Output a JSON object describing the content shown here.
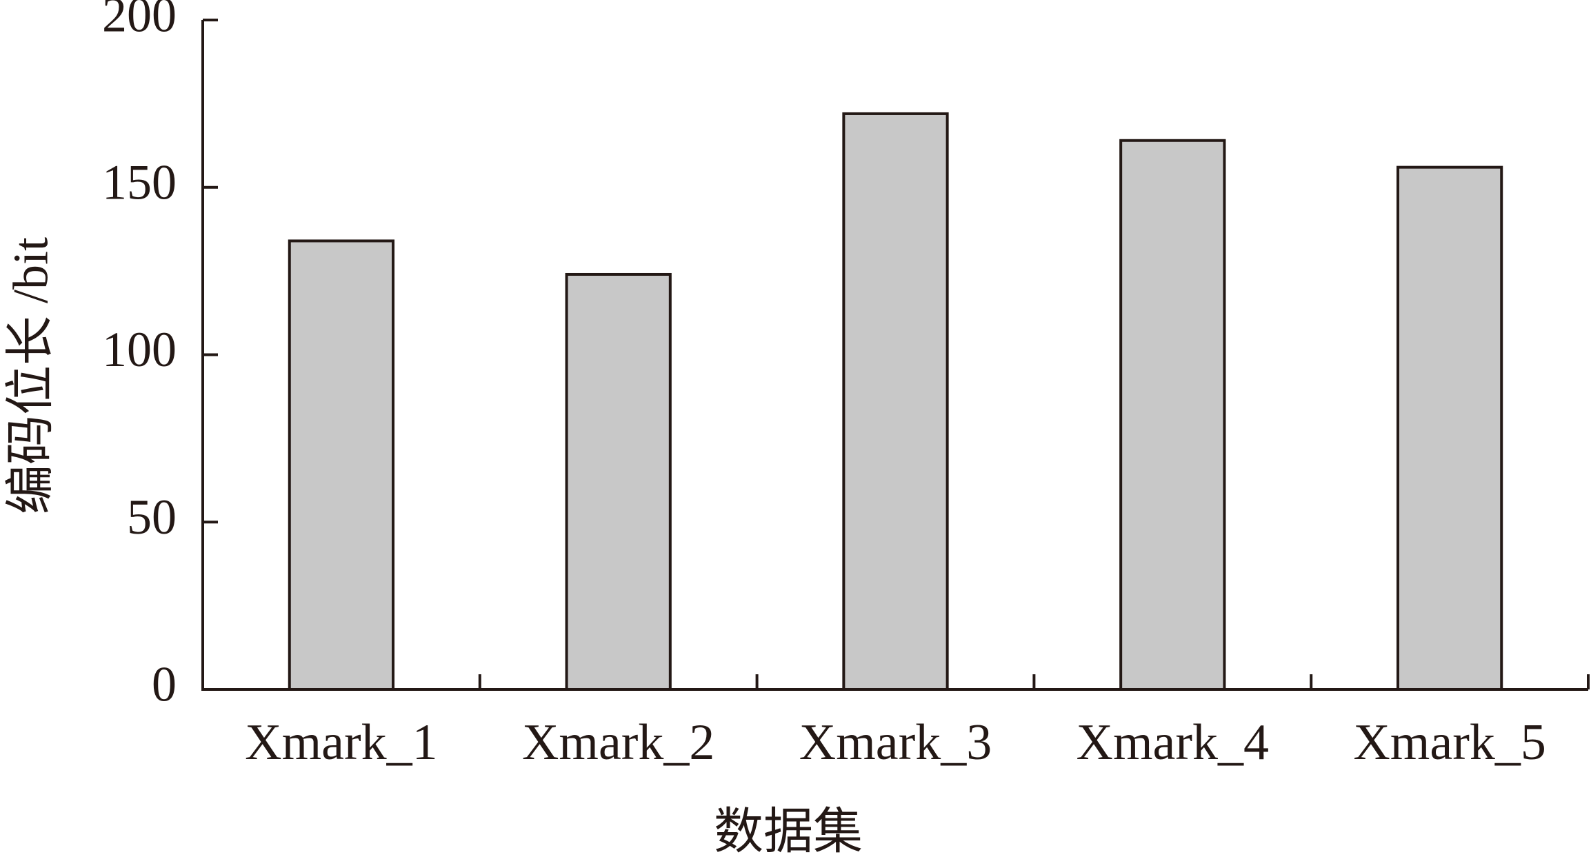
{
  "chart_data": {
    "type": "bar",
    "x_label": "数据集",
    "y_label": "编码位长 /bit",
    "categories": [
      "Xmark_1",
      "Xmark_2",
      "Xmark_3",
      "Xmark_4",
      "Xmark_5"
    ],
    "values": [
      134,
      124,
      172,
      164,
      156
    ],
    "color": "#c8c8c8",
    "ylim": [
      0,
      200
    ],
    "yticks": [
      0,
      50,
      100,
      150,
      200
    ],
    "grid": false
  }
}
